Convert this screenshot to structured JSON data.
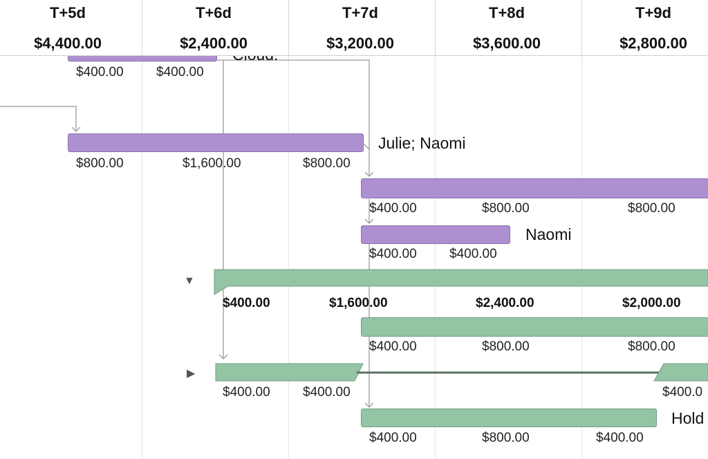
{
  "columns": [
    {
      "label": "T+5d",
      "total": "$4,400.00"
    },
    {
      "label": "T+6d",
      "total": "$2,400.00"
    },
    {
      "label": "T+7d",
      "total": "$3,200.00"
    },
    {
      "label": "T+8d",
      "total": "$3,600.00"
    },
    {
      "label": "T+9d",
      "total": "$2,800.00"
    }
  ],
  "rows": {
    "r0": {
      "costs": [
        "$400.00",
        "$400.00"
      ],
      "resource_partial": "Cloud."
    },
    "r1": {
      "resource": "Julie; Naomi",
      "costs": [
        "$800.00",
        "$1,600.00",
        "$800.00"
      ]
    },
    "r2": {
      "costs": [
        "$400.00",
        "$800.00",
        "$800.00"
      ]
    },
    "r3": {
      "resource": "Naomi",
      "costs": [
        "$400.00",
        "$400.00"
      ]
    },
    "summary1": {
      "costs": [
        "$400.00",
        "$1,600.00",
        "$2,400.00",
        "$2,000.00"
      ]
    },
    "r5": {
      "costs": [
        "$400.00",
        "$800.00",
        "$800.00"
      ]
    },
    "summary2": {
      "costs": [
        "$400.00",
        "$400.00",
        "$400.0"
      ]
    },
    "r7": {
      "resource": "Hold",
      "costs": [
        "$400.00",
        "$800.00",
        "$400.00"
      ]
    }
  },
  "colors": {
    "purple": "#ae90d2",
    "green": "#93c5a4",
    "link": "#9a9a9a"
  }
}
